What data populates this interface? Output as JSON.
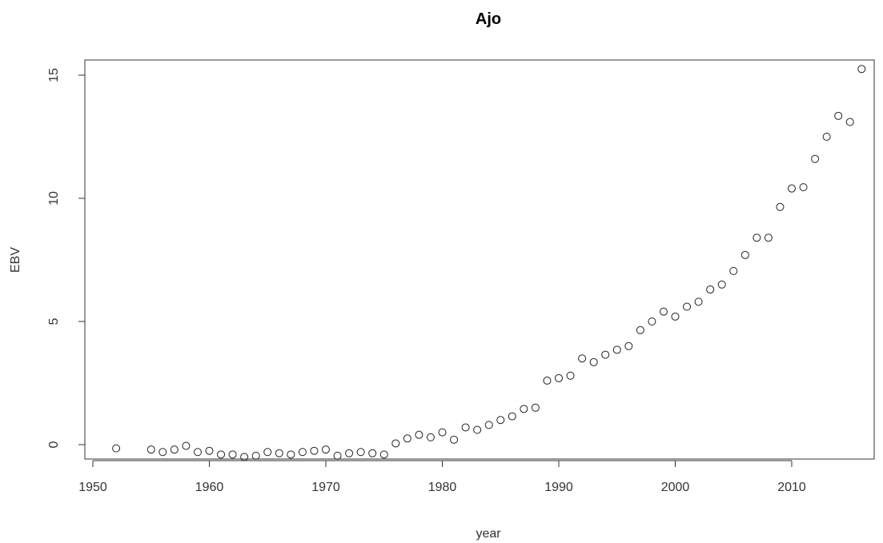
{
  "chart_data": {
    "type": "scatter",
    "title": "Ajo",
    "xlabel": "year",
    "ylabel": "EBV",
    "xlim": [
      1950,
      2017
    ],
    "ylim": [
      -0.6,
      15.6
    ],
    "xticks": [
      1950,
      1960,
      1970,
      1980,
      1990,
      2000,
      2010
    ],
    "yticks": [
      0,
      5,
      10,
      15
    ],
    "grid": false,
    "marker": "open-circle",
    "series": [
      {
        "x": [
          1952,
          1955,
          1956,
          1957,
          1958,
          1959,
          1960,
          1961,
          1962,
          1963,
          1964,
          1965,
          1966,
          1967,
          1968,
          1969,
          1970,
          1971,
          1972,
          1973,
          1974,
          1975,
          1976,
          1977,
          1978,
          1979,
          1980,
          1981,
          1982,
          1983,
          1984,
          1985,
          1986,
          1987,
          1988,
          1989,
          1990,
          1991,
          1992,
          1993,
          1994,
          1995,
          1996,
          1997,
          1998,
          1999,
          2000,
          2001,
          2002,
          2003,
          2004,
          2005,
          2006,
          2007,
          2008,
          2009,
          2010,
          2011,
          2012,
          2013,
          2014,
          2015,
          2016
        ],
        "y": [
          -0.15,
          -0.2,
          -0.3,
          -0.2,
          -0.05,
          -0.3,
          -0.25,
          -0.4,
          -0.4,
          -0.5,
          -0.45,
          -0.3,
          -0.35,
          -0.4,
          -0.3,
          -0.25,
          -0.2,
          -0.45,
          -0.35,
          -0.3,
          -0.35,
          -0.4,
          0.05,
          0.25,
          0.4,
          0.3,
          0.5,
          0.2,
          0.7,
          0.6,
          0.8,
          1.0,
          1.15,
          1.45,
          1.5,
          2.6,
          2.7,
          2.8,
          3.5,
          3.35,
          3.65,
          3.85,
          4.0,
          4.65,
          5.0,
          5.4,
          5.2,
          5.6,
          5.8,
          6.3,
          6.5,
          7.05,
          7.7,
          8.4,
          8.4,
          9.65,
          10.4,
          10.45,
          11.6,
          12.5,
          13.35,
          13.1,
          15.25
        ]
      }
    ]
  }
}
